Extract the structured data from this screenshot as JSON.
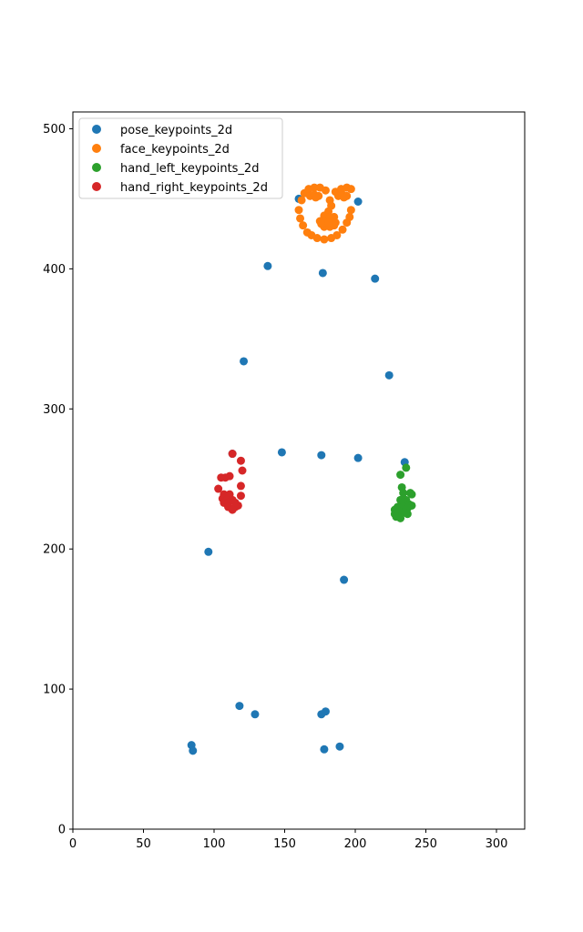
{
  "chart_data": {
    "type": "scatter",
    "title": "",
    "xlabel": "",
    "ylabel": "",
    "xlim": [
      0,
      320
    ],
    "ylim": [
      0,
      512
    ],
    "xticks": [
      0,
      50,
      100,
      150,
      200,
      250,
      300
    ],
    "yticks": [
      0,
      100,
      200,
      300,
      400,
      500
    ],
    "grid": false,
    "legend_position": "upper-left",
    "series": [
      {
        "name": "pose_keypoints_2d",
        "color": "#1f77b4",
        "points": [
          [
            160,
            450
          ],
          [
            202,
            448
          ],
          [
            178,
            436
          ],
          [
            138,
            402
          ],
          [
            177,
            397
          ],
          [
            214,
            393
          ],
          [
            121,
            334
          ],
          [
            224,
            324
          ],
          [
            113,
            268
          ],
          [
            148,
            269
          ],
          [
            176,
            267
          ],
          [
            202,
            265
          ],
          [
            235,
            262
          ],
          [
            96,
            198
          ],
          [
            192,
            178
          ],
          [
            118,
            88
          ],
          [
            129,
            82
          ],
          [
            176,
            82
          ],
          [
            179,
            84
          ],
          [
            84,
            60
          ],
          [
            85,
            56
          ],
          [
            178,
            57
          ],
          [
            189,
            59
          ]
        ]
      },
      {
        "name": "face_keypoints_2d",
        "color": "#ff7f0e",
        "points": [
          [
            160,
            442
          ],
          [
            161,
            436
          ],
          [
            163,
            431
          ],
          [
            166,
            426
          ],
          [
            169,
            424
          ],
          [
            173,
            422
          ],
          [
            178,
            421
          ],
          [
            183,
            422
          ],
          [
            187,
            424
          ],
          [
            191,
            428
          ],
          [
            194,
            433
          ],
          [
            196,
            437
          ],
          [
            197,
            442
          ],
          [
            162,
            449
          ],
          [
            164,
            454
          ],
          [
            167,
            457
          ],
          [
            171,
            458
          ],
          [
            175,
            458
          ],
          [
            179,
            456
          ],
          [
            168,
            452
          ],
          [
            171,
            453
          ],
          [
            174,
            452
          ],
          [
            172,
            451
          ],
          [
            186,
            455
          ],
          [
            190,
            457
          ],
          [
            194,
            458
          ],
          [
            197,
            457
          ],
          [
            188,
            452
          ],
          [
            191,
            453
          ],
          [
            194,
            452
          ],
          [
            192,
            451
          ],
          [
            182,
            449
          ],
          [
            183,
            445
          ],
          [
            181,
            441
          ],
          [
            178,
            438
          ],
          [
            182,
            437
          ],
          [
            185,
            437
          ],
          [
            175,
            434
          ],
          [
            179,
            434
          ],
          [
            183,
            434
          ],
          [
            186,
            433
          ],
          [
            178,
            430
          ],
          [
            182,
            430
          ],
          [
            176,
            432
          ],
          [
            185,
            431
          ],
          [
            181,
            433
          ]
        ]
      },
      {
        "name": "hand_left_keypoints_2d",
        "color": "#2ca02c",
        "points": [
          [
            236,
            258
          ],
          [
            232,
            253
          ],
          [
            233,
            244
          ],
          [
            234,
            240
          ],
          [
            239,
            240
          ],
          [
            240,
            239
          ],
          [
            236,
            235
          ],
          [
            232,
            235
          ],
          [
            234,
            233
          ],
          [
            238,
            232
          ],
          [
            240,
            231
          ],
          [
            230,
            230
          ],
          [
            234,
            230
          ],
          [
            237,
            229
          ],
          [
            228,
            228
          ],
          [
            231,
            227
          ],
          [
            235,
            226
          ],
          [
            228,
            225
          ],
          [
            237,
            225
          ],
          [
            229,
            223
          ],
          [
            232,
            222
          ]
        ]
      },
      {
        "name": "hand_right_keypoints_2d",
        "color": "#d62728",
        "points": [
          [
            113,
            268
          ],
          [
            119,
            263
          ],
          [
            120,
            256
          ],
          [
            105,
            251
          ],
          [
            108,
            251
          ],
          [
            111,
            252
          ],
          [
            119,
            245
          ],
          [
            103,
            243
          ],
          [
            107,
            239
          ],
          [
            111,
            239
          ],
          [
            119,
            238
          ],
          [
            106,
            236
          ],
          [
            109,
            235
          ],
          [
            113,
            235
          ],
          [
            107,
            233
          ],
          [
            110,
            233
          ],
          [
            115,
            233
          ],
          [
            117,
            231
          ],
          [
            110,
            230
          ],
          [
            115,
            230
          ],
          [
            113,
            228
          ]
        ]
      }
    ]
  }
}
